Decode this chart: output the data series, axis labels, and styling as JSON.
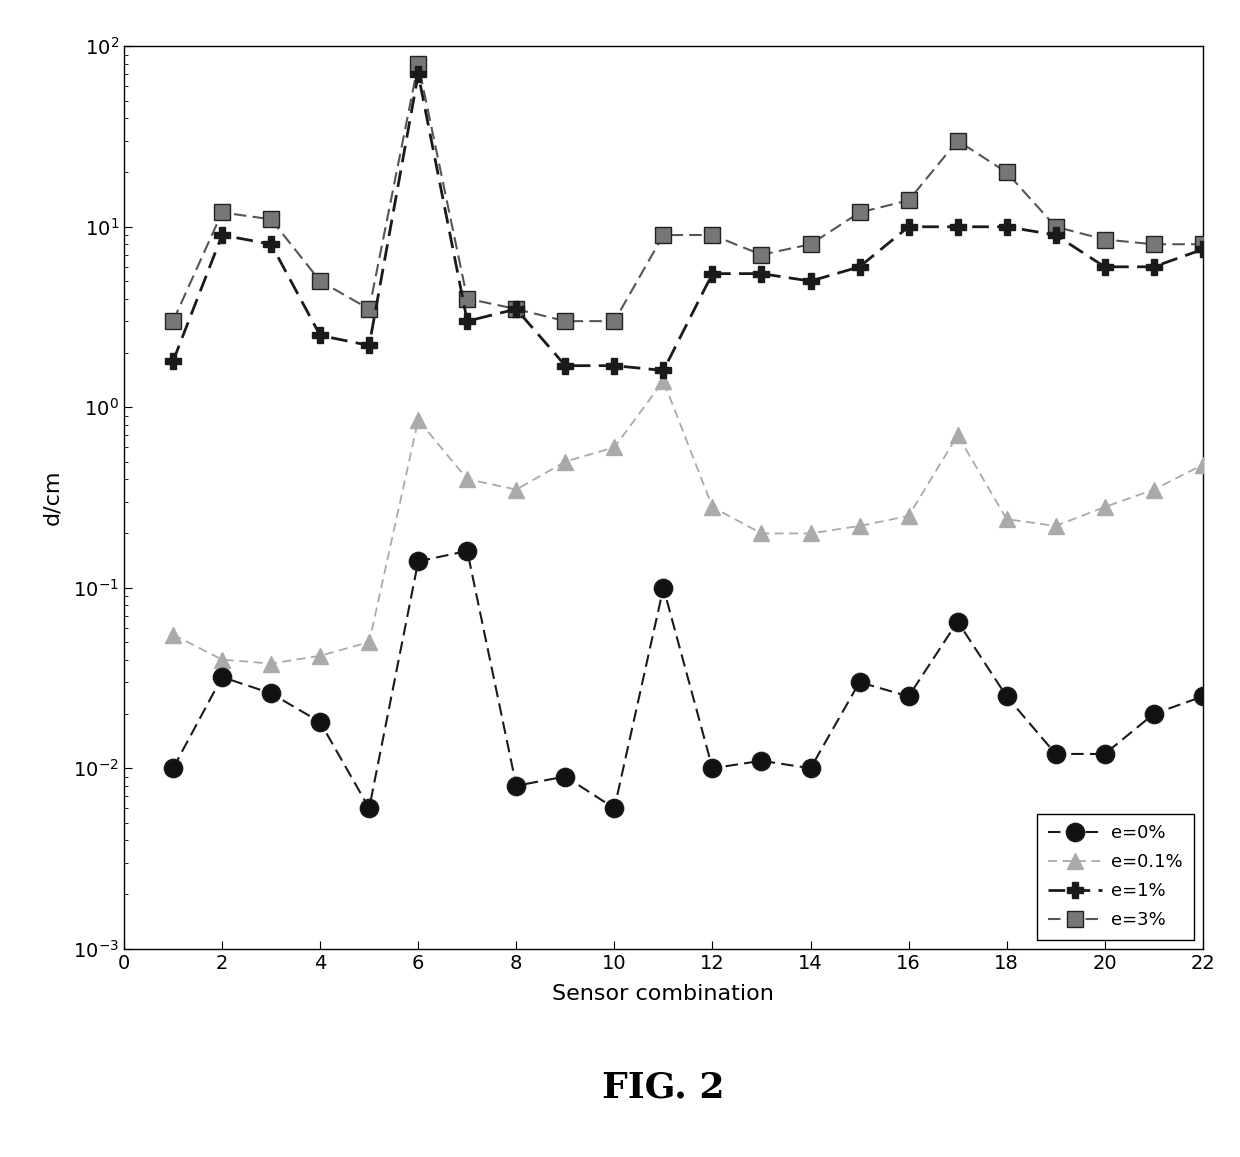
{
  "x": [
    1,
    2,
    3,
    4,
    5,
    6,
    7,
    8,
    9,
    10,
    11,
    12,
    13,
    14,
    15,
    16,
    17,
    18,
    19,
    20,
    21,
    22
  ],
  "e0": [
    0.01,
    0.032,
    0.026,
    0.018,
    0.006,
    0.14,
    0.16,
    0.008,
    0.009,
    0.006,
    0.1,
    0.01,
    0.011,
    0.01,
    0.03,
    0.025,
    0.065,
    0.025,
    0.012,
    0.012,
    0.02,
    0.025
  ],
  "e01": [
    0.055,
    0.04,
    0.038,
    0.042,
    0.05,
    0.85,
    0.4,
    0.35,
    0.5,
    0.6,
    1.4,
    0.28,
    0.2,
    0.2,
    0.22,
    0.25,
    0.7,
    0.24,
    0.22,
    0.28,
    0.35,
    0.48
  ],
  "e1": [
    1.8,
    9.0,
    8.0,
    2.5,
    2.2,
    70.0,
    3.0,
    3.5,
    1.7,
    1.7,
    1.6,
    5.5,
    5.5,
    5.0,
    6.0,
    10.0,
    10.0,
    10.0,
    9.0,
    6.0,
    6.0,
    7.5
  ],
  "e3": [
    3.0,
    12.0,
    11.0,
    5.0,
    3.5,
    80.0,
    4.0,
    3.5,
    3.0,
    3.0,
    9.0,
    9.0,
    7.0,
    8.0,
    12.0,
    14.0,
    30.0,
    20.0,
    10.0,
    8.5,
    8.0,
    8.0
  ],
  "xlabel": "Sensor combination",
  "ylabel": "d/cm",
  "fig_label": "FIG. 2",
  "legend_labels": [
    "e=0%",
    "e=0.1%",
    "e=1%",
    "e=3%"
  ],
  "xlim": [
    0,
    22
  ],
  "dark": "#1a1a1a",
  "gray": "#aaaaaa"
}
